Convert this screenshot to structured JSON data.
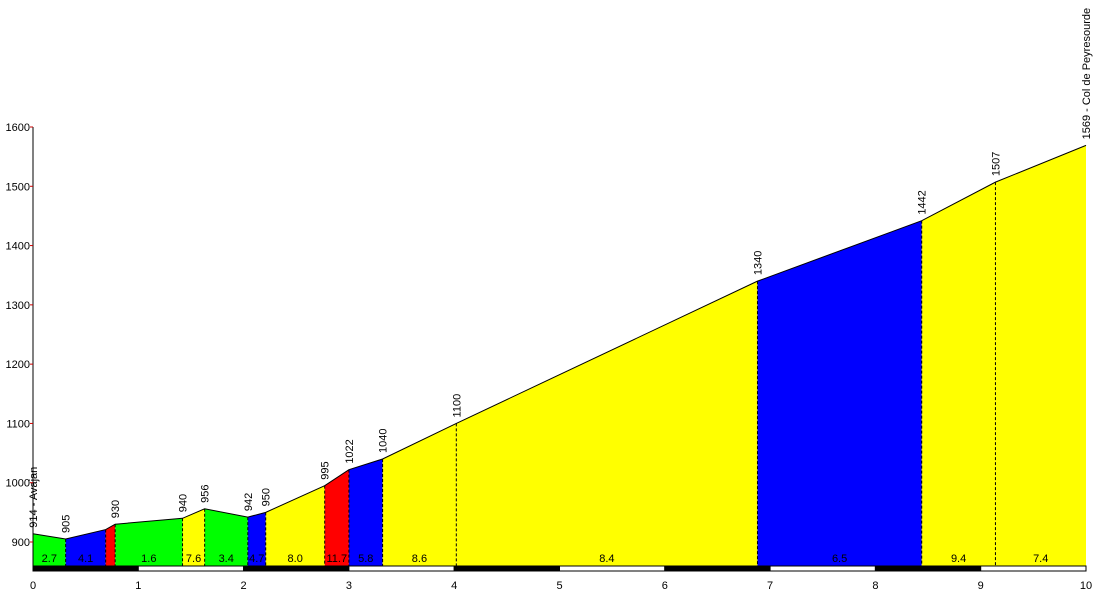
{
  "chart_data": {
    "type": "area",
    "title": "",
    "xlabel": "",
    "ylabel": "",
    "xlim": [
      0,
      10
    ],
    "ylim": [
      860,
      1600
    ],
    "x_ticks": [
      "0",
      "1",
      "2",
      "3",
      "4",
      "5",
      "6",
      "7",
      "8",
      "9",
      "10"
    ],
    "y_ticks": [
      "900",
      "1000",
      "1100",
      "1200",
      "1300",
      "1400",
      "1500",
      "1600"
    ],
    "grid": false,
    "points": [
      {
        "km": 0,
        "alt": 914,
        "label": "914 - Avajan"
      },
      {
        "km": 0.31,
        "alt": 905,
        "label": "905"
      },
      {
        "km": 0.69,
        "alt": 921,
        "label": ""
      },
      {
        "km": 0.78,
        "alt": 930,
        "label": "930"
      },
      {
        "km": 1.42,
        "alt": 940,
        "label": "940"
      },
      {
        "km": 1.63,
        "alt": 956,
        "label": "956"
      },
      {
        "km": 2.04,
        "alt": 942,
        "label": "942"
      },
      {
        "km": 2.21,
        "alt": 950,
        "label": "950"
      },
      {
        "km": 2.77,
        "alt": 995,
        "label": "995"
      },
      {
        "km": 3.0,
        "alt": 1022,
        "label": "1022"
      },
      {
        "km": 3.32,
        "alt": 1040,
        "label": "1040"
      },
      {
        "km": 4.02,
        "alt": 1100,
        "label": "1100"
      },
      {
        "km": 6.88,
        "alt": 1340,
        "label": "1340"
      },
      {
        "km": 8.44,
        "alt": 1442,
        "label": "1442"
      },
      {
        "km": 9.14,
        "alt": 1507,
        "label": "1507"
      },
      {
        "km": 10,
        "alt": 1569,
        "label": "1569 - Col de Peyresourde"
      }
    ],
    "segments": [
      {
        "grade": "2.7",
        "color": "#00ff00"
      },
      {
        "grade": "4.1",
        "color": "#0000ff"
      },
      {
        "grade": "",
        "color": "#ff0000"
      },
      {
        "grade": "1.6",
        "color": "#00ff00"
      },
      {
        "grade": "7.6",
        "color": "#ffff00"
      },
      {
        "grade": "3.4",
        "color": "#00ff00"
      },
      {
        "grade": "4.7",
        "color": "#0000ff"
      },
      {
        "grade": "8.0",
        "color": "#ffff00"
      },
      {
        "grade": "11.7",
        "color": "#ff0000"
      },
      {
        "grade": "5.8",
        "color": "#0000ff"
      },
      {
        "grade": "8.6",
        "color": "#ffff00"
      },
      {
        "grade": "8.4",
        "color": "#ffff00"
      },
      {
        "grade": "6.5",
        "color": "#0000ff"
      },
      {
        "grade": "9.4",
        "color": "#ffff00"
      },
      {
        "grade": "7.4",
        "color": "#ffff00"
      }
    ]
  }
}
